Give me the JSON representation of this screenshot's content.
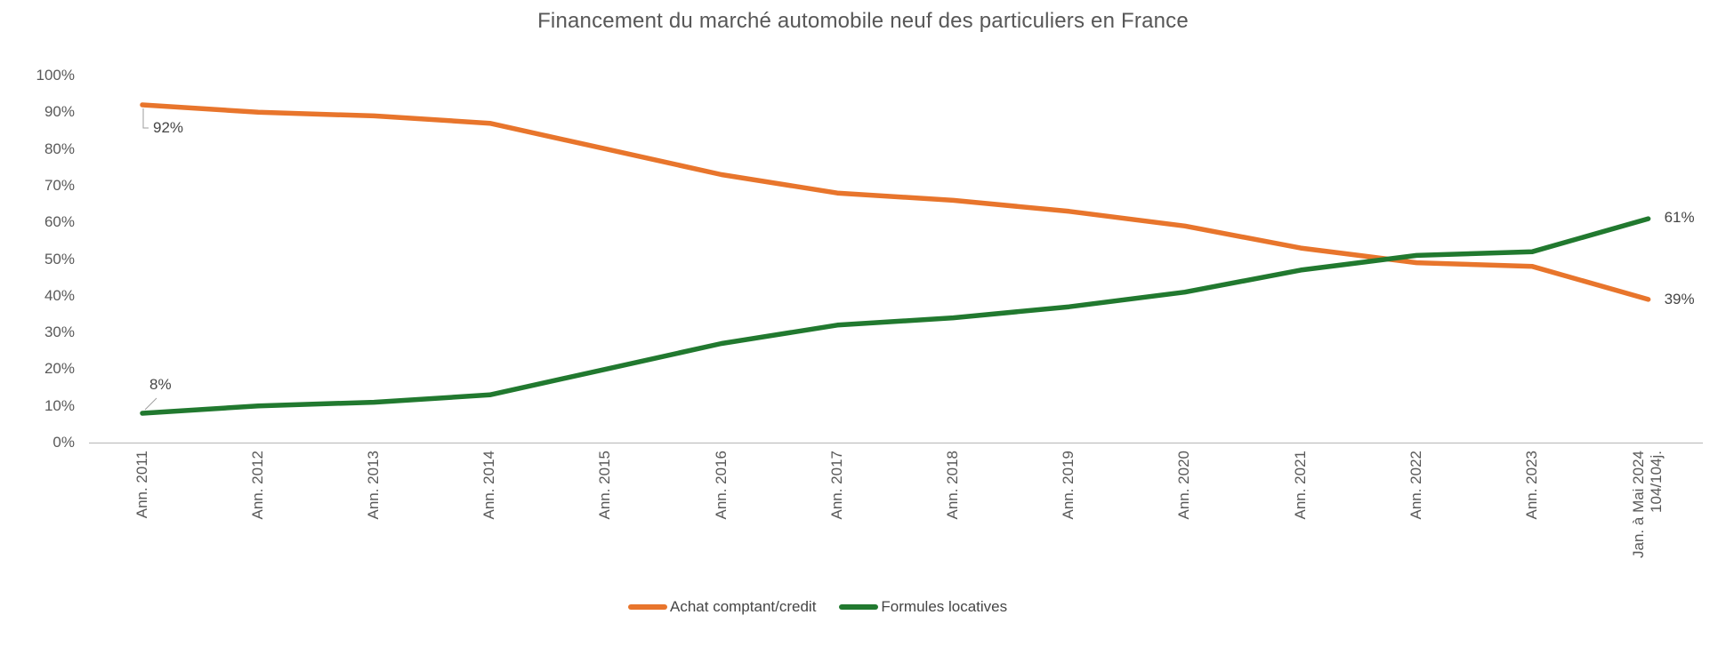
{
  "title": "Financement du marché automobile neuf des particuliers en France",
  "chart_data": {
    "type": "line",
    "title": "Financement du marché automobile neuf des particuliers en France",
    "categories": [
      "Ann. 2011",
      "Ann. 2012",
      "Ann. 2013",
      "Ann. 2014",
      "Ann. 2015",
      "Ann. 2016",
      "Ann. 2017",
      "Ann. 2018",
      "Ann. 2019",
      "Ann. 2020",
      "Ann. 2021",
      "Ann. 2022",
      "Ann. 2023",
      "Jan. à Mai 2024\n104/104j."
    ],
    "series": [
      {
        "name": "Achat comptant/credit",
        "color": "#E8752C",
        "values": [
          92,
          90,
          89,
          87,
          80,
          73,
          68,
          66,
          63,
          59,
          53,
          49,
          48,
          39
        ],
        "first_label": "92%",
        "last_label": "39%"
      },
      {
        "name": "Formules locatives",
        "color": "#21792F",
        "values": [
          8,
          10,
          11,
          13,
          20,
          27,
          32,
          34,
          37,
          41,
          47,
          51,
          52,
          61
        ],
        "first_label": "8%",
        "last_label": "61%"
      }
    ],
    "xlabel": "",
    "ylabel": "",
    "yticks": [
      "0%",
      "10%",
      "20%",
      "30%",
      "40%",
      "50%",
      "60%",
      "70%",
      "80%",
      "90%",
      "100%"
    ],
    "ylim": [
      0,
      100
    ],
    "grid": false,
    "legend_position": "bottom",
    "axis_color": "#BFBFBF",
    "leader_line_color": "#9E9E9E",
    "text_color": "#595959"
  }
}
